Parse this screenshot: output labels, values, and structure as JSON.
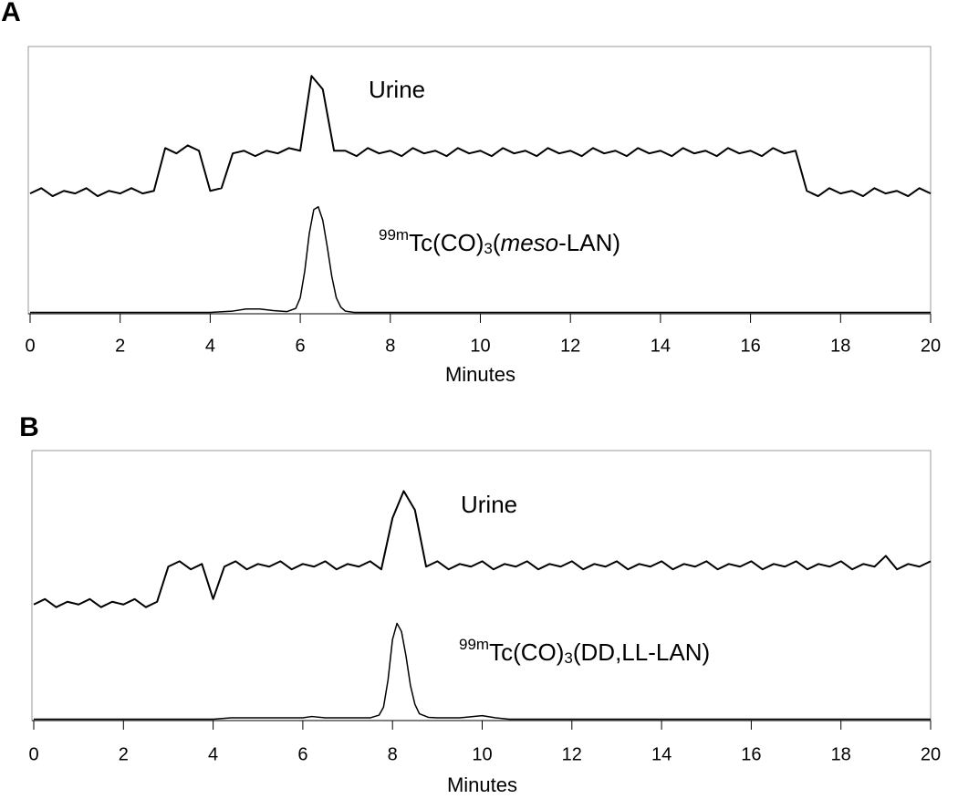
{
  "chart_data": [
    {
      "type": "line",
      "panel_label": "A",
      "x_label": "Minutes",
      "xlim": [
        0,
        20
      ],
      "xticks": [
        0,
        2,
        4,
        6,
        8,
        10,
        12,
        14,
        16,
        18,
        20
      ],
      "ylim": [
        0,
        100
      ],
      "series": [
        {
          "name": "Urine",
          "color": "#000000",
          "width": 2,
          "x": [
            0,
            0.25,
            0.5,
            0.75,
            1,
            1.25,
            1.5,
            1.75,
            2,
            2.25,
            2.5,
            2.75,
            3,
            3.25,
            3.5,
            3.75,
            4,
            4.25,
            4.5,
            4.75,
            5,
            5.25,
            5.5,
            5.75,
            6,
            6.25,
            6.5,
            6.75,
            7,
            7.25,
            7.5,
            7.75,
            8,
            8.25,
            8.5,
            8.75,
            9,
            9.25,
            9.5,
            9.75,
            10,
            10.25,
            10.5,
            10.75,
            11,
            11.25,
            11.5,
            11.75,
            12,
            12.25,
            12.5,
            12.75,
            13,
            13.25,
            13.5,
            13.75,
            14,
            14.25,
            14.5,
            14.75,
            15,
            15.25,
            15.5,
            15.75,
            16,
            16.25,
            16.5,
            16.75,
            17,
            17.25,
            17.5,
            17.75,
            18,
            18.25,
            18.5,
            18.75,
            19,
            19.25,
            19.5,
            19.75,
            20
          ],
          "values": [
            45,
            47,
            44,
            46,
            45,
            47,
            44,
            46,
            45,
            47,
            45,
            46,
            62,
            60,
            63,
            61,
            46,
            47,
            60,
            61,
            59,
            61,
            60,
            62,
            61,
            89,
            84,
            61,
            61,
            59,
            62,
            60,
            61,
            59,
            62,
            60,
            61,
            59,
            62,
            60,
            61,
            59,
            62,
            60,
            61,
            59,
            62,
            60,
            61,
            59,
            62,
            60,
            61,
            59,
            62,
            60,
            61,
            59,
            62,
            60,
            61,
            59,
            62,
            60,
            61,
            59,
            62,
            60,
            61,
            46,
            44,
            47,
            45,
            46,
            44,
            47,
            45,
            46,
            44,
            47,
            45
          ]
        },
        {
          "label": [
            {
              "text": "99m",
              "style": "sup"
            },
            {
              "text": "Tc(CO)",
              "style": "normal"
            },
            {
              "text": "3",
              "style": "sub"
            },
            {
              "text": "(",
              "style": "normal"
            },
            {
              "text": "meso",
              "style": "italic"
            },
            {
              "text": "-LAN)",
              "style": "normal"
            }
          ],
          "color": "#000000",
          "width": 1.5,
          "x": [
            0,
            1,
            2,
            3,
            4,
            4.5,
            4.8,
            5.1,
            5.4,
            5.7,
            5.9,
            6.0,
            6.1,
            6.2,
            6.3,
            6.4,
            6.5,
            6.6,
            6.7,
            6.8,
            6.9,
            7.0,
            7.2,
            8,
            10,
            12,
            14,
            16,
            18,
            20
          ],
          "values": [
            0.5,
            0.5,
            0.5,
            0.5,
            0.5,
            1,
            1.8,
            1.8,
            1.2,
            0.8,
            2,
            6,
            16,
            30,
            39,
            40,
            35,
            25,
            14,
            6,
            2.5,
            1,
            0.5,
            0.5,
            0.5,
            0.5,
            0.5,
            0.5,
            0.5,
            0.5
          ]
        }
      ]
    },
    {
      "type": "line",
      "panel_label": "B",
      "x_label": "Minutes",
      "xlim": [
        0,
        20
      ],
      "xticks": [
        0,
        2,
        4,
        6,
        8,
        10,
        12,
        14,
        16,
        18,
        20
      ],
      "ylim": [
        0,
        100
      ],
      "series": [
        {
          "name": "Urine",
          "color": "#000000",
          "width": 2,
          "x": [
            0,
            0.25,
            0.5,
            0.75,
            1,
            1.25,
            1.5,
            1.75,
            2,
            2.25,
            2.5,
            2.75,
            3,
            3.25,
            3.5,
            3.75,
            4,
            4.25,
            4.5,
            4.75,
            5,
            5.25,
            5.5,
            5.75,
            6,
            6.25,
            6.5,
            6.75,
            7,
            7.25,
            7.5,
            7.75,
            8,
            8.25,
            8.5,
            8.75,
            9,
            9.25,
            9.5,
            9.75,
            10,
            10.25,
            10.5,
            10.75,
            11,
            11.25,
            11.5,
            11.75,
            12,
            12.25,
            12.5,
            12.75,
            13,
            13.25,
            13.5,
            13.75,
            14,
            14.25,
            14.5,
            14.75,
            15,
            15.25,
            15.5,
            15.75,
            16,
            16.25,
            16.5,
            16.75,
            17,
            17.25,
            17.5,
            17.75,
            18,
            18.25,
            18.5,
            18.75,
            19,
            19.25,
            19.5,
            19.75,
            20
          ],
          "values": [
            43,
            45,
            42,
            44,
            43,
            45,
            42,
            44,
            43,
            45,
            42,
            44,
            57,
            59,
            56,
            58,
            45,
            57,
            59,
            56,
            58,
            57,
            59,
            56,
            58,
            57,
            59,
            56,
            58,
            57,
            59,
            56,
            75,
            85,
            78,
            57,
            59,
            56,
            58,
            57,
            59,
            56,
            58,
            57,
            59,
            56,
            58,
            57,
            59,
            56,
            58,
            57,
            59,
            56,
            58,
            57,
            59,
            56,
            58,
            57,
            59,
            56,
            58,
            57,
            59,
            56,
            58,
            57,
            59,
            56,
            58,
            57,
            59,
            56,
            58,
            57,
            61,
            56,
            58,
            57,
            59
          ]
        },
        {
          "label": [
            {
              "text": "99m",
              "style": "sup"
            },
            {
              "text": "Tc(CO)",
              "style": "normal"
            },
            {
              "text": "3",
              "style": "sub"
            },
            {
              "text": "(DD,LL-LAN)",
              "style": "normal"
            }
          ],
          "color": "#000000",
          "width": 1.5,
          "x": [
            0,
            2,
            4,
            4.4,
            5,
            6,
            6.2,
            6.5,
            7,
            7.5,
            7.7,
            7.8,
            7.9,
            8.0,
            8.1,
            8.2,
            8.3,
            8.4,
            8.5,
            8.6,
            8.8,
            9,
            9.5,
            10,
            10.3,
            10.6,
            12,
            14,
            16,
            20
          ],
          "values": [
            0.5,
            0.5,
            0.5,
            1,
            1,
            1,
            1.5,
            1,
            1,
            1,
            2,
            5,
            15,
            30,
            36,
            33,
            24,
            13,
            6,
            2.5,
            1.2,
            1,
            1,
            1.8,
            1,
            0.5,
            0.5,
            0.5,
            0.5,
            0.5
          ]
        }
      ]
    }
  ]
}
